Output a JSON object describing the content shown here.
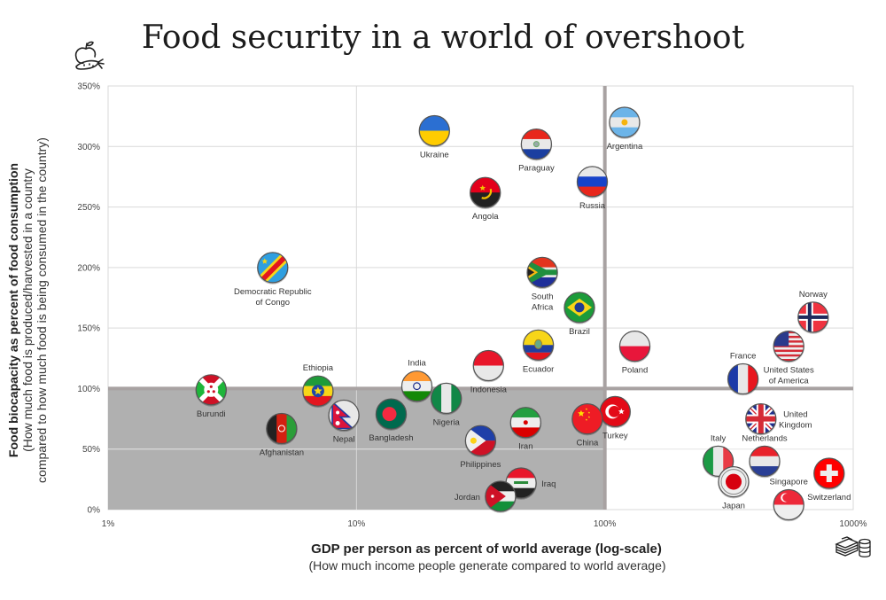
{
  "title": "Food security in a world of overshoot",
  "icons": {
    "top_left": "apple-carrot-icon",
    "bottom_right": "money-stack-coins-icon"
  },
  "colors": {
    "shaded_region": "#b0b0b0",
    "threshold_line": "#a8a2a2",
    "grid": "#d9d9d9"
  },
  "chart_data": {
    "type": "scatter",
    "title": "Food security in a world of overshoot",
    "xlabel": "GDP per person as percent of world average (log-scale)",
    "xlabel_sub": "(How much income people generate compared to world average)",
    "ylabel": "Food biocapacity as percent of food consumption",
    "ylabel_sub": [
      "(How much food is produced/harvested in a country",
      "compared to how much food is being consumed in the country)"
    ],
    "x_scale": "log",
    "xlim": [
      1,
      1000
    ],
    "ylim": [
      0,
      350
    ],
    "x_ticks": [
      1,
      10,
      100,
      1000
    ],
    "x_tick_labels": [
      "1%",
      "10%",
      "100%",
      "1000%"
    ],
    "y_ticks": [
      0,
      50,
      100,
      150,
      200,
      250,
      300,
      350
    ],
    "y_tick_labels": [
      "0%",
      "50%",
      "100%",
      "150%",
      "200%",
      "250%",
      "300%",
      "350%"
    ],
    "grid": true,
    "shaded_region": {
      "x": [
        1,
        100
      ],
      "y": [
        0,
        100
      ],
      "meaning": "below world-average income and food deficit"
    },
    "threshold_lines": {
      "x": 100,
      "y": 100
    },
    "points": [
      {
        "name": "Ukraine",
        "label": [
          "Ukraine"
        ],
        "x": 20.6,
        "y": 313,
        "lp": "below",
        "flag": "ukraine"
      },
      {
        "name": "Argentina",
        "label": [
          "Argentina"
        ],
        "x": 120,
        "y": 320,
        "lp": "below",
        "flag": "argentina"
      },
      {
        "name": "Paraguay",
        "label": [
          "Paraguay"
        ],
        "x": 53,
        "y": 302,
        "lp": "below",
        "flag": "paraguay"
      },
      {
        "name": "Russia",
        "label": [
          "Russia"
        ],
        "x": 89,
        "y": 271,
        "lp": "below",
        "flag": "russia"
      },
      {
        "name": "Angola",
        "label": [
          "Angola"
        ],
        "x": 33,
        "y": 262,
        "lp": "below",
        "flag": "angola"
      },
      {
        "name": "Democratic Republic of Congo",
        "label": [
          "Democratic Republic",
          "of Congo"
        ],
        "x": 4.6,
        "y": 200,
        "lp": "below",
        "flag": "drc"
      },
      {
        "name": "South Africa",
        "label": [
          "South",
          "Africa"
        ],
        "x": 56,
        "y": 196,
        "lp": "below",
        "flag": "southafrica"
      },
      {
        "name": "Brazil",
        "label": [
          "Brazil"
        ],
        "x": 79,
        "y": 167,
        "lp": "below",
        "flag": "brazil"
      },
      {
        "name": "Norway",
        "label": [
          "Norway"
        ],
        "x": 690,
        "y": 159,
        "lp": "above",
        "flag": "norway"
      },
      {
        "name": "United States of America",
        "label": [
          "United States",
          "of America"
        ],
        "x": 550,
        "y": 135,
        "lp": "below",
        "flag": "usa"
      },
      {
        "name": "Ecuador",
        "label": [
          "Ecuador"
        ],
        "x": 54,
        "y": 136,
        "lp": "below",
        "flag": "ecuador"
      },
      {
        "name": "Poland",
        "label": [
          "Poland"
        ],
        "x": 132,
        "y": 135,
        "lp": "below",
        "flag": "poland"
      },
      {
        "name": "Indonesia",
        "label": [
          "Indonesia"
        ],
        "x": 34,
        "y": 119,
        "lp": "below",
        "flag": "indonesia"
      },
      {
        "name": "France",
        "label": [
          "France"
        ],
        "x": 360,
        "y": 108,
        "lp": "above",
        "flag": "france"
      },
      {
        "name": "India",
        "label": [
          "India"
        ],
        "x": 17.5,
        "y": 102,
        "lp": "above",
        "flag": "india"
      },
      {
        "name": "Burundi",
        "label": [
          "Burundi"
        ],
        "x": 2.6,
        "y": 99,
        "lp": "below",
        "flag": "burundi"
      },
      {
        "name": "Ethiopia",
        "label": [
          "Ethiopia"
        ],
        "x": 7,
        "y": 98,
        "lp": "above",
        "flag": "ethiopia"
      },
      {
        "name": "Nigeria",
        "label": [
          "Nigeria"
        ],
        "x": 23,
        "y": 92,
        "lp": "below",
        "flag": "nigeria"
      },
      {
        "name": "Turkey",
        "label": [
          "Turkey"
        ],
        "x": 110,
        "y": 81,
        "lp": "below",
        "flag": "turkey"
      },
      {
        "name": "United Kingdom",
        "label": [
          "United",
          "Kingdom"
        ],
        "x": 425,
        "y": 75,
        "lp": "right",
        "flag": "uk"
      },
      {
        "name": "Nepal",
        "label": [
          "Nepal"
        ],
        "x": 8.9,
        "y": 78,
        "lp": "below",
        "flag": "nepal"
      },
      {
        "name": "Bangladesh",
        "label": [
          "Bangladesh"
        ],
        "x": 13.8,
        "y": 79,
        "lp": "below",
        "flag": "bangladesh"
      },
      {
        "name": "China",
        "label": [
          "China"
        ],
        "x": 85,
        "y": 75,
        "lp": "below",
        "flag": "china"
      },
      {
        "name": "Iran",
        "label": [
          "Iran"
        ],
        "x": 48,
        "y": 72,
        "lp": "below",
        "flag": "iran"
      },
      {
        "name": "Afghanistan",
        "label": [
          "Afghanistan"
        ],
        "x": 5,
        "y": 67,
        "lp": "below",
        "flag": "afghanistan"
      },
      {
        "name": "Philippines",
        "label": [
          "Philippines"
        ],
        "x": 31.6,
        "y": 57,
        "lp": "below",
        "flag": "philippines"
      },
      {
        "name": "Netherlands",
        "label": [
          "Netherlands"
        ],
        "x": 440,
        "y": 40,
        "lp": "above",
        "flag": "netherlands"
      },
      {
        "name": "Italy",
        "label": [
          "Italy"
        ],
        "x": 286,
        "y": 40,
        "lp": "above",
        "flag": "italy"
      },
      {
        "name": "Switzerland",
        "label": [
          "Switzerland"
        ],
        "x": 800,
        "y": 30,
        "lp": "below",
        "flag": "switzerland"
      },
      {
        "name": "Japan",
        "label": [
          "Japan"
        ],
        "x": 330,
        "y": 23,
        "lp": "below",
        "flag": "japan"
      },
      {
        "name": "Iraq",
        "label": [
          "Iraq"
        ],
        "x": 46,
        "y": 22,
        "lp": "right",
        "flag": "iraq"
      },
      {
        "name": "Jordan",
        "label": [
          "Jordan"
        ],
        "x": 38,
        "y": 11,
        "lp": "left",
        "flag": "jordan"
      },
      {
        "name": "Singapore",
        "label": [
          "Singapore"
        ],
        "x": 550,
        "y": 4,
        "lp": "above",
        "flag": "singapore"
      }
    ]
  }
}
